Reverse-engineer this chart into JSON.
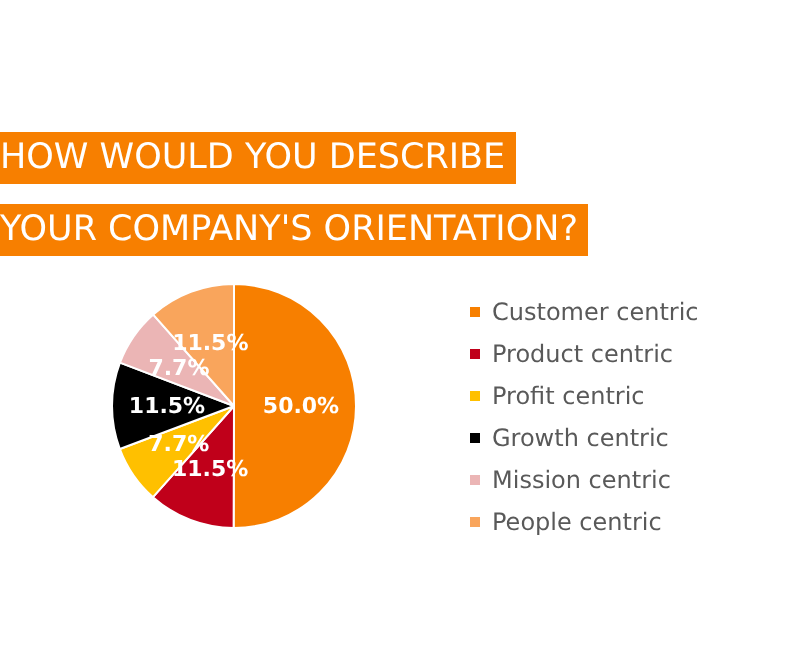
{
  "chart_data": {
    "type": "pie",
    "title": "HOW WOULD YOU DESCRIBE\nYOUR COMPANY'S ORIENTATION?",
    "categories": [
      "Customer centric",
      "Product centric",
      "Profit centric",
      "Growth centric",
      "Mission centric",
      "People centric"
    ],
    "values": [
      50.0,
      11.5,
      7.7,
      11.5,
      7.7,
      11.5
    ],
    "value_labels": [
      "50.0%",
      "11.5%",
      "7.7%",
      "11.5%",
      "7.7%",
      "11.5%"
    ],
    "colors": [
      "#f77f00",
      "#c0001a",
      "#ffc000",
      "#000000",
      "#ebb5b5",
      "#f9a55c"
    ],
    "legend": "right"
  }
}
